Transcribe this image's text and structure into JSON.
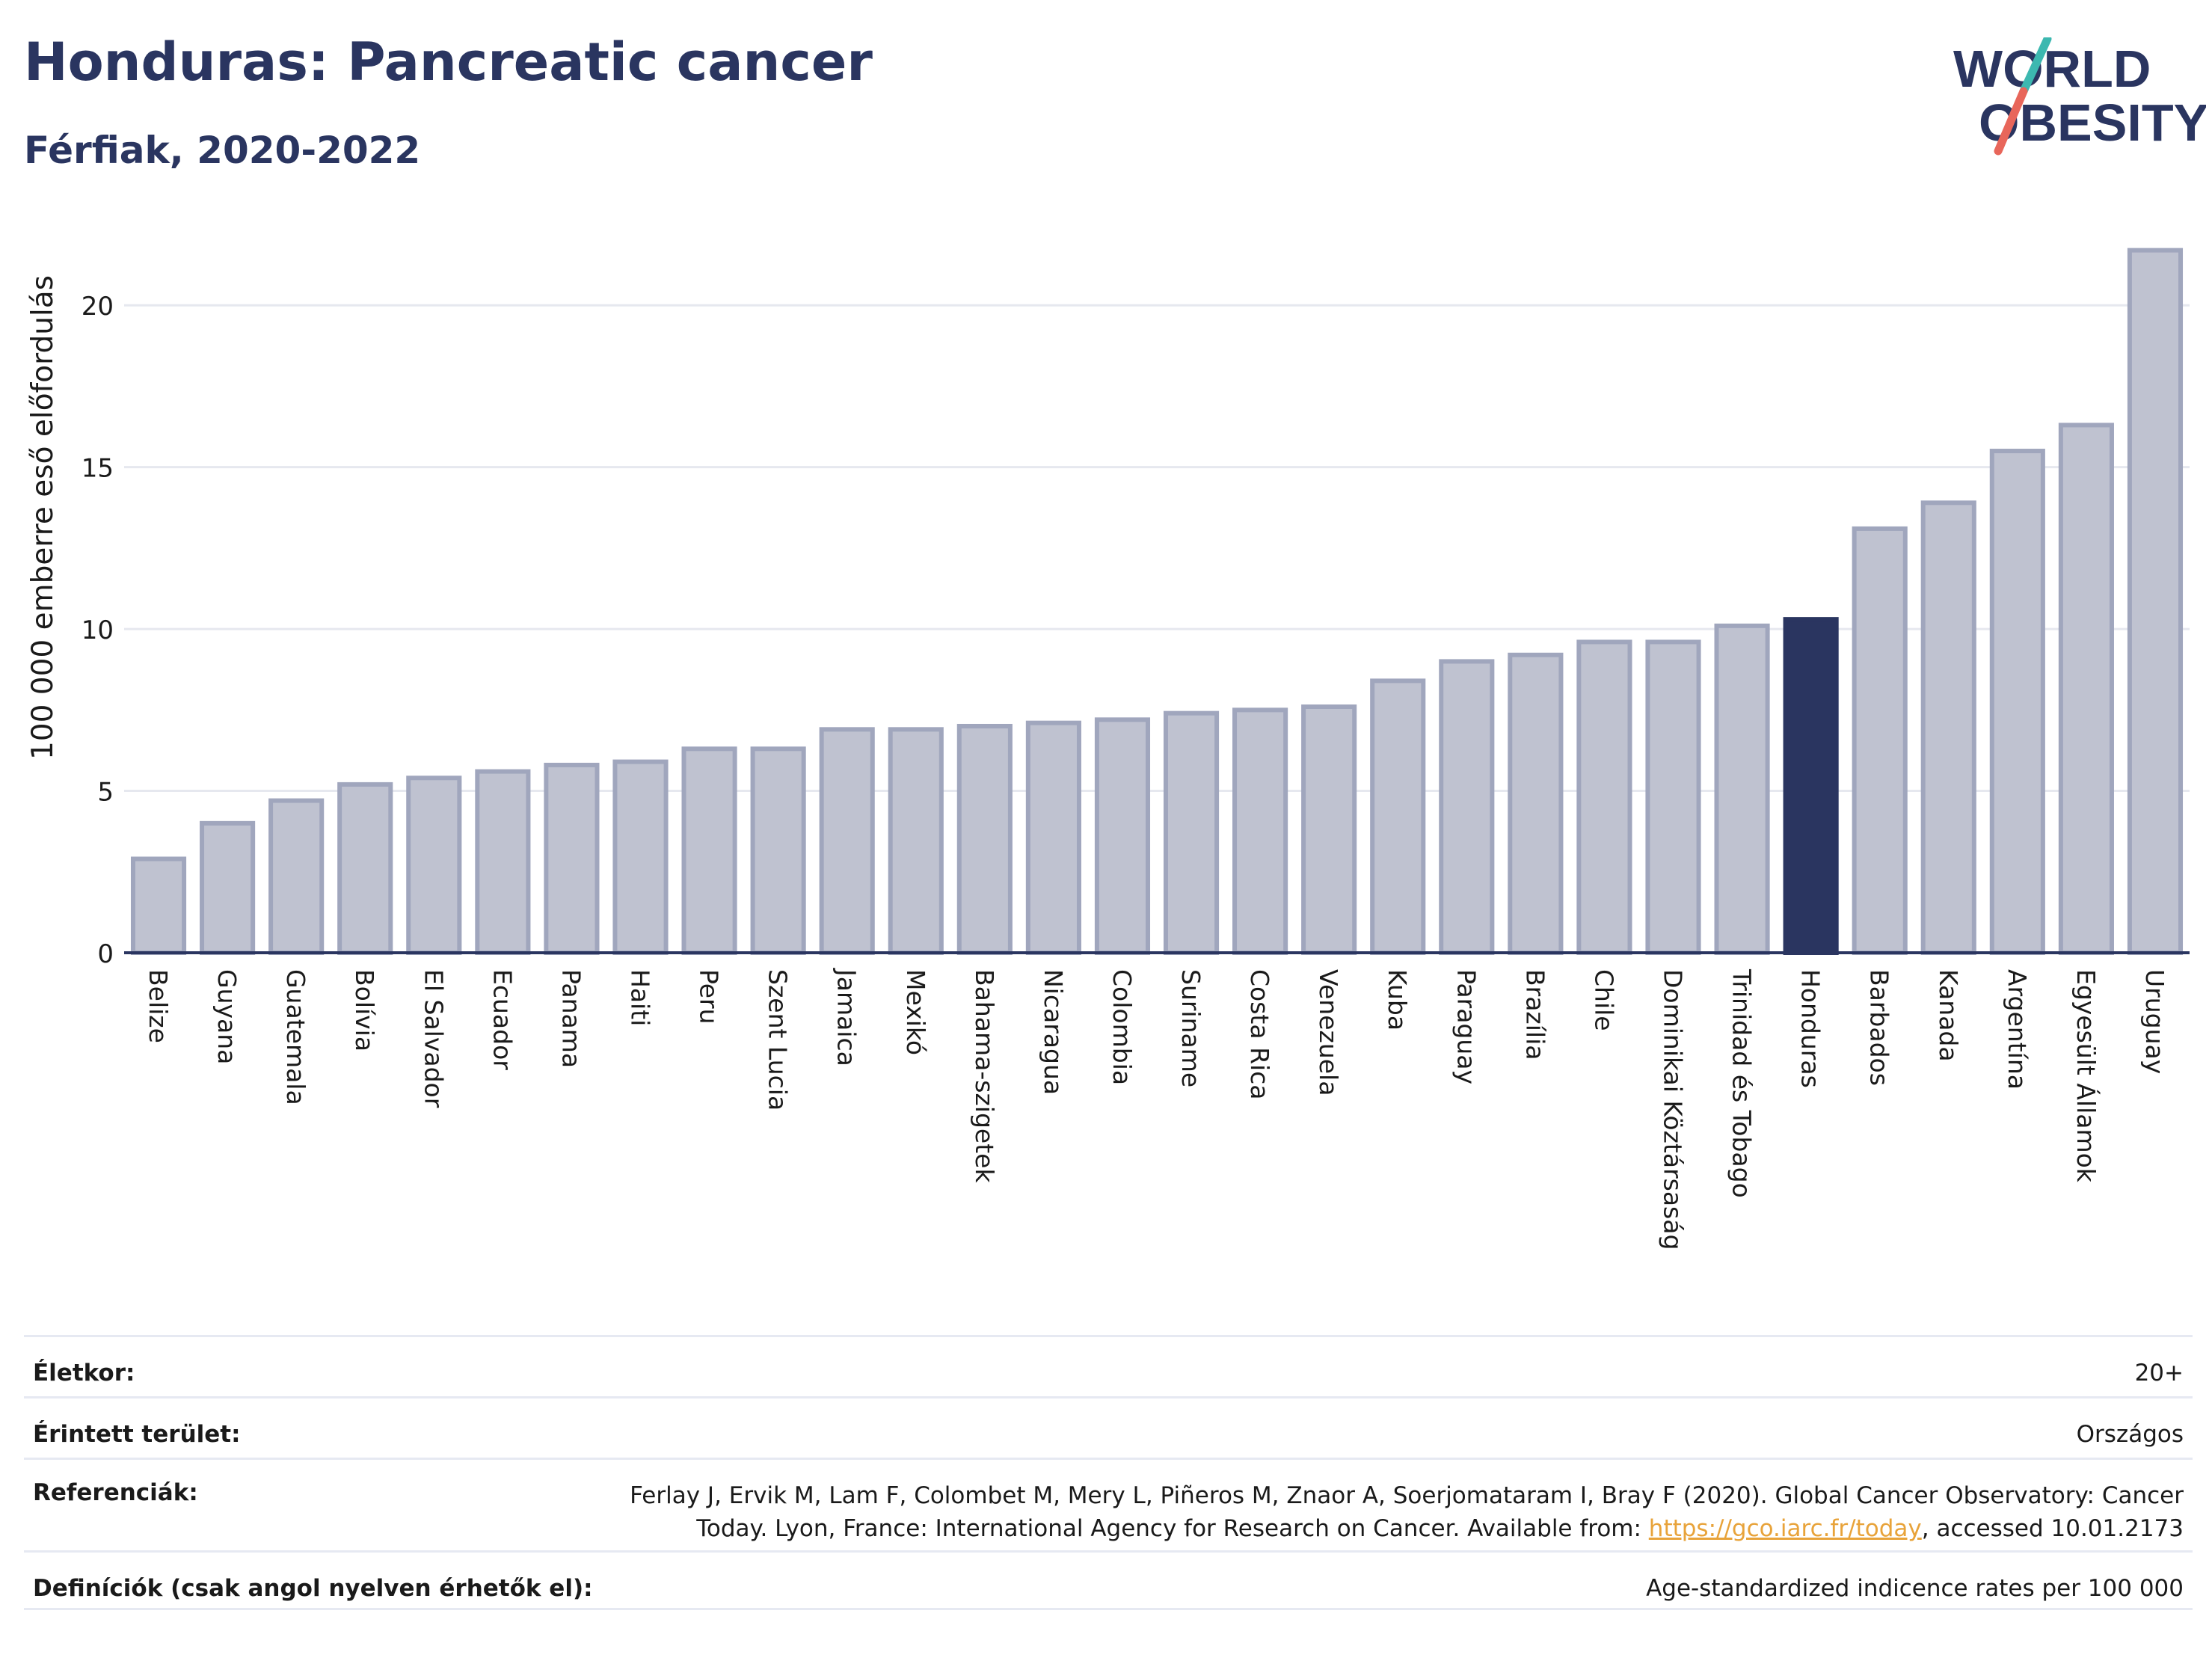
{
  "header": {
    "title": "Honduras: Pancreatic cancer",
    "subtitle": "Férfiak, 2020-2022"
  },
  "logo": {
    "line1": "WORLD",
    "line2": "OBESITY",
    "colors": {
      "text": "#2a3560",
      "slash_top": "#3cb8b0",
      "slash_bottom": "#e8665a"
    }
  },
  "chart_data": {
    "type": "bar",
    "ylabel": "100 000 emberre eső előfordulás",
    "ylim": [
      0,
      22.5
    ],
    "yticks": [
      0,
      5,
      10,
      15,
      20
    ],
    "grid": true,
    "highlight": "Honduras",
    "colors": {
      "bar": "#bfc2d0",
      "bar_stroke": "#a0a6bd",
      "highlight": "#2a3560",
      "grid": "#e6e8ef",
      "axis": "#2a3560"
    },
    "categories": [
      "Belize",
      "Guyana",
      "Guatemala",
      "Bolívia",
      "El Salvador",
      "Ecuador",
      "Panama",
      "Haiti",
      "Peru",
      "Szent Lucia",
      "Jamaica",
      "Mexikó",
      "Bahama-szigetek",
      "Nicaragua",
      "Colombia",
      "Suriname",
      "Costa Rica",
      "Venezuela",
      "Kuba",
      "Paraguay",
      "Brazília",
      "Chile",
      "Dominikai Köztársaság",
      "Trinidad és Tobago",
      "Honduras",
      "Barbados",
      "Kanada",
      "Argentína",
      "Egyesült Államok",
      "Uruguay"
    ],
    "values": [
      2.9,
      4.0,
      4.7,
      5.2,
      5.4,
      5.6,
      5.8,
      5.9,
      6.3,
      6.3,
      6.9,
      6.9,
      7.0,
      7.1,
      7.2,
      7.4,
      7.5,
      7.6,
      8.4,
      9.0,
      9.2,
      9.6,
      9.6,
      10.1,
      10.3,
      13.1,
      13.9,
      15.5,
      16.3,
      21.7
    ]
  },
  "meta": {
    "age_label": "Életkor:",
    "age_value": "20+",
    "area_label": "Érintett terület:",
    "area_value": "Országos",
    "ref_label": "Referenciák:",
    "ref_text": "Ferlay J, Ervik M, Lam F, Colombet M, Mery L, Piñeros M, Znaor A, Soerjomataram I, Bray F (2020). Global Cancer Observatory: Cancer Today. Lyon, France: International Agency for Research on Cancer. Available from: ",
    "ref_link": "https://gco.iarc.fr/today",
    "ref_suffix": ", accessed 10.01.2173",
    "def_label": "Definíciók (csak angol nyelven érhetők el):",
    "def_value": "Age-standardized indicence rates per 100 000"
  }
}
